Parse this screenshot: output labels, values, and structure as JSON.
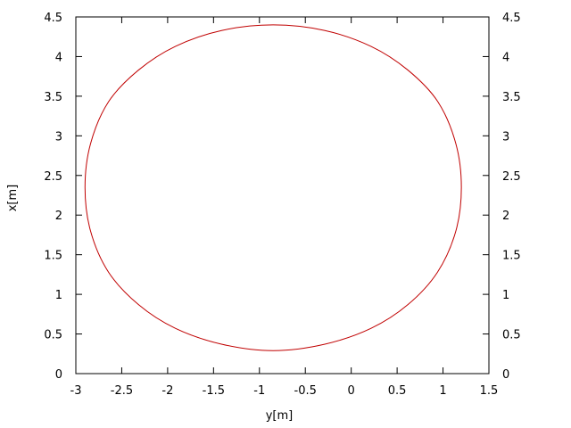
{
  "chart_data": {
    "type": "line",
    "xlabel": "y[m]",
    "ylabel": "x[m]",
    "xlim": [
      -3,
      1.5
    ],
    "ylim": [
      0,
      4.5
    ],
    "x_ticks": [
      -3,
      -2.5,
      -2,
      -1.5,
      -1,
      -0.5,
      0,
      0.5,
      1,
      1.5
    ],
    "x_tick_labels": [
      "-3",
      "-2.5",
      "-2",
      "-1.5",
      "-1",
      "-0.5",
      "0",
      "0.5",
      "1",
      "1.5"
    ],
    "y_ticks": [
      0,
      0.5,
      1,
      1.5,
      2,
      2.5,
      3,
      3.5,
      4,
      4.5
    ],
    "y_tick_labels": [
      "0",
      "0.5",
      "1",
      "1.5",
      "2",
      "2.5",
      "3",
      "3.5",
      "4",
      "4.5"
    ],
    "mirror_y_ticks_right": true,
    "grid": false,
    "series": [
      {
        "color": "#c00000",
        "x": [
          -0.85,
          -0.292,
          0.214,
          0.617,
          0.944,
          1.14,
          1.2,
          1.14,
          0.94,
          0.617,
          0.214,
          -0.292,
          -0.85,
          -1.408,
          -1.914,
          -2.317,
          -2.644,
          -2.84,
          -2.9,
          -2.84,
          -2.644,
          -2.317,
          -1.914,
          -1.408,
          -0.85
        ],
        "y": [
          4.4,
          4.33,
          4.13,
          3.83,
          3.43,
          2.9,
          2.35,
          1.8,
          1.28,
          0.87,
          0.57,
          0.37,
          0.29,
          0.37,
          0.57,
          0.87,
          1.28,
          1.8,
          2.35,
          2.9,
          3.43,
          3.83,
          4.13,
          4.33,
          4.4
        ]
      }
    ]
  }
}
